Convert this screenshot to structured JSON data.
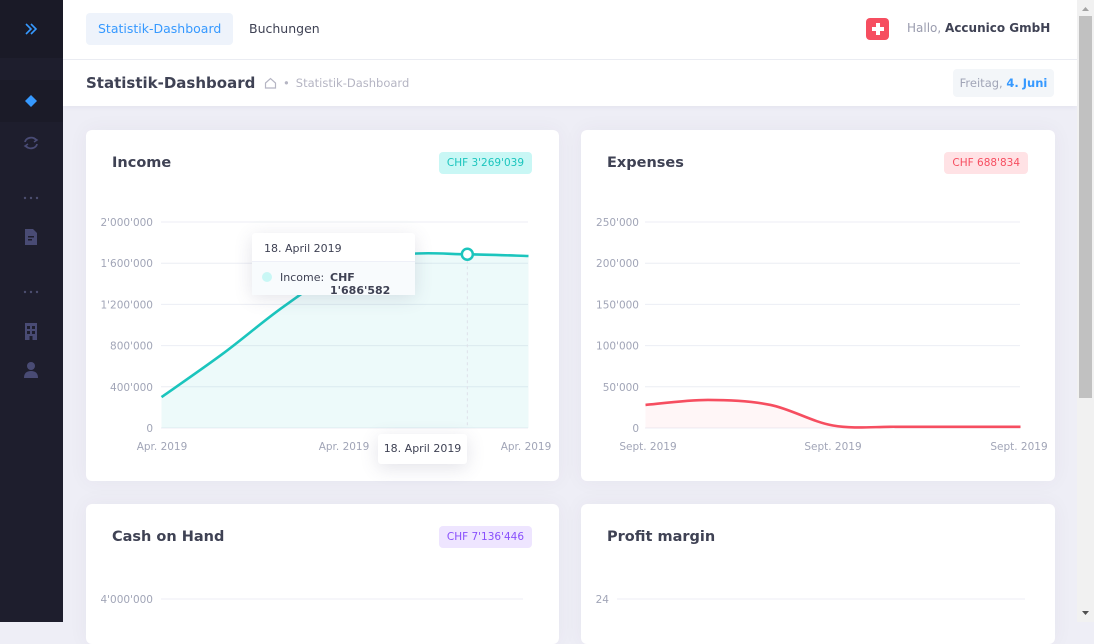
{
  "header": {
    "tabs": [
      {
        "label": "Statistik-Dashboard",
        "active": true
      },
      {
        "label": "Buchungen",
        "active": false
      }
    ],
    "greeting_prefix": "Hallo,",
    "user_name": "Accunico GmbH"
  },
  "subheader": {
    "title": "Statistik-Dashboard",
    "breadcrumb": "Statistik-Dashboard",
    "date_weekday": "Freitag,",
    "date_day": "4. Juni"
  },
  "sidebar": {
    "icons": [
      "expand-icon",
      "dashboard-icon",
      "sync-icon",
      "more-icon",
      "document-icon",
      "more-icon",
      "building-icon",
      "user-icon"
    ]
  },
  "colors": {
    "income": "#1bc5bd",
    "expenses": "#f64e60",
    "cash": "#8950fc",
    "primary": "#3699ff"
  },
  "cards": {
    "income": {
      "title": "Income",
      "badge": "CHF 3'269'039"
    },
    "expenses": {
      "title": "Expenses",
      "badge": "CHF 688'834"
    },
    "cash": {
      "title": "Cash on Hand",
      "badge": "CHF 7'136'446"
    },
    "profit": {
      "title": "Profit margin"
    }
  },
  "tooltip": {
    "date": "18. April 2019",
    "series": "Income:",
    "value": "CHF 1'686'582",
    "x_label": "18. April 2019"
  },
  "chart_data": [
    {
      "type": "area",
      "title": "Income",
      "x_ticks": [
        "Apr. 2019",
        "Apr. 2019",
        "Apr. 2019"
      ],
      "y_ticks": [
        "0",
        "400'000",
        "800'000",
        "1'200'000",
        "1'600'000",
        "2'000'000"
      ],
      "ylim": [
        0,
        2000000
      ],
      "series": [
        {
          "name": "Income",
          "values": [
            300000,
            720000,
            1180000,
            1560000,
            1686582,
            1686582,
            1670000
          ]
        }
      ]
    },
    {
      "type": "area",
      "title": "Expenses",
      "x_ticks": [
        "Sept. 2019",
        "Sept. 2019",
        "Sept. 2019"
      ],
      "y_ticks": [
        "0",
        "50'000",
        "100'000",
        "150'000",
        "200'000",
        "250'000"
      ],
      "ylim": [
        0,
        250000
      ],
      "series": [
        {
          "name": "Expenses",
          "values": [
            28000,
            34000,
            28000,
            3000,
            1500,
            1500,
            1500
          ]
        }
      ]
    },
    {
      "type": "area",
      "title": "Cash on Hand",
      "y_ticks": [
        "4'000'000"
      ],
      "series": []
    },
    {
      "type": "area",
      "title": "Profit margin",
      "y_ticks": [
        "24"
      ],
      "series": []
    }
  ]
}
